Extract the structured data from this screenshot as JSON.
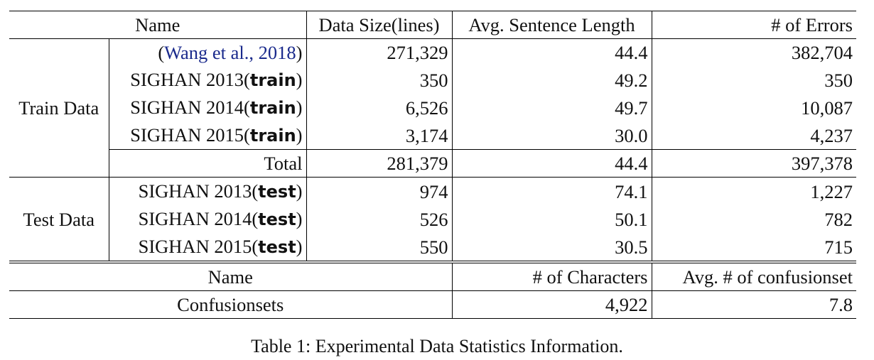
{
  "table": {
    "header": {
      "name": "Name",
      "data_size": "Data Size(lines)",
      "avg_len": "Avg. Sentence Length",
      "errors": "# of Errors"
    },
    "train_group": "Train Data",
    "train_rows": [
      {
        "prefix": "(",
        "cite": "Wang et al., 2018",
        "suffix": ")",
        "bold": "",
        "size": "271,329",
        "avg": "44.4",
        "errors": "382,704"
      },
      {
        "prefix": "SIGHAN 2013(",
        "cite": "",
        "bold": "train",
        "suffix": ")",
        "size": "350",
        "avg": "49.2",
        "errors": "350"
      },
      {
        "prefix": "SIGHAN 2014(",
        "cite": "",
        "bold": "train",
        "suffix": ")",
        "size": "6,526",
        "avg": "49.7",
        "errors": "10,087"
      },
      {
        "prefix": "SIGHAN 2015(",
        "cite": "",
        "bold": "train",
        "suffix": ")",
        "size": "3,174",
        "avg": "30.0",
        "errors": "4,237"
      }
    ],
    "total": {
      "label": "Total",
      "size": "281,379",
      "avg": "44.4",
      "errors": "397,378"
    },
    "test_group": "Test Data",
    "test_rows": [
      {
        "prefix": "SIGHAN 2013(",
        "bold": "test",
        "suffix": ")",
        "size": "974",
        "avg": "74.1",
        "errors": "1,227"
      },
      {
        "prefix": "SIGHAN 2014(",
        "bold": "test",
        "suffix": ")",
        "size": "526",
        "avg": "50.1",
        "errors": "782"
      },
      {
        "prefix": "SIGHAN 2015(",
        "bold": "test",
        "suffix": ")",
        "size": "550",
        "avg": "30.5",
        "errors": "715"
      }
    ],
    "conf_header": {
      "name": "Name",
      "chars": "# of Characters",
      "avg_conf": "Avg. # of confusionset"
    },
    "conf_row": {
      "name": "Confusionsets",
      "chars": "4,922",
      "avg_conf": "7.8"
    }
  },
  "caption": "Table 1: Experimental Data Statistics Information."
}
